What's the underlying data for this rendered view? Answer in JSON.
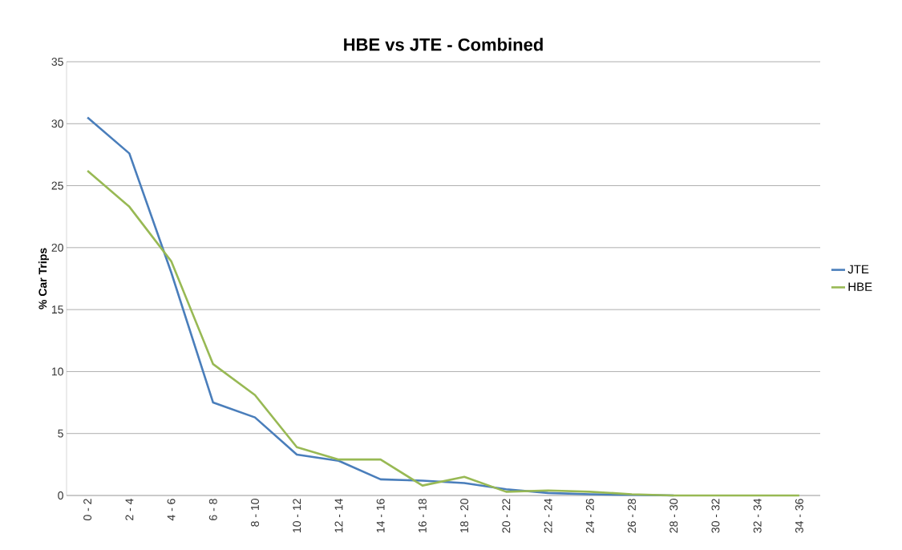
{
  "chart_data": {
    "type": "line",
    "title": "HBE vs JTE - Combined",
    "ylabel": "% Car Trips",
    "categories": [
      "0 - 2",
      "2 - 4",
      "4 - 6",
      "6 - 8",
      "8 - 10",
      "10 - 12",
      "12 - 14",
      "14 - 16",
      "16 - 18",
      "18 - 20",
      "20 - 22",
      "22 - 24",
      "24 - 26",
      "26 - 28",
      "28 - 30",
      "30 - 32",
      "32 - 34",
      "34 - 36"
    ],
    "series": [
      {
        "name": "JTE",
        "color": "#4a7ebb",
        "values": [
          30.5,
          27.6,
          18,
          7.5,
          6.3,
          3.3,
          2.8,
          1.3,
          1.2,
          1.0,
          0.5,
          0.2,
          0.1,
          0.05,
          0,
          null,
          null,
          null
        ]
      },
      {
        "name": "HBE",
        "color": "#98b954",
        "values": [
          26.2,
          23.3,
          18.9,
          10.6,
          8.1,
          3.9,
          2.9,
          2.9,
          0.8,
          1.5,
          0.3,
          0.4,
          0.3,
          0.1,
          0,
          0,
          0,
          0
        ]
      }
    ],
    "ylim": [
      0,
      35
    ],
    "yticks": [
      0,
      5,
      10,
      15,
      20,
      25,
      30,
      35
    ],
    "grid": "y",
    "legend": "right",
    "marker": "none",
    "line_style": "solid"
  }
}
